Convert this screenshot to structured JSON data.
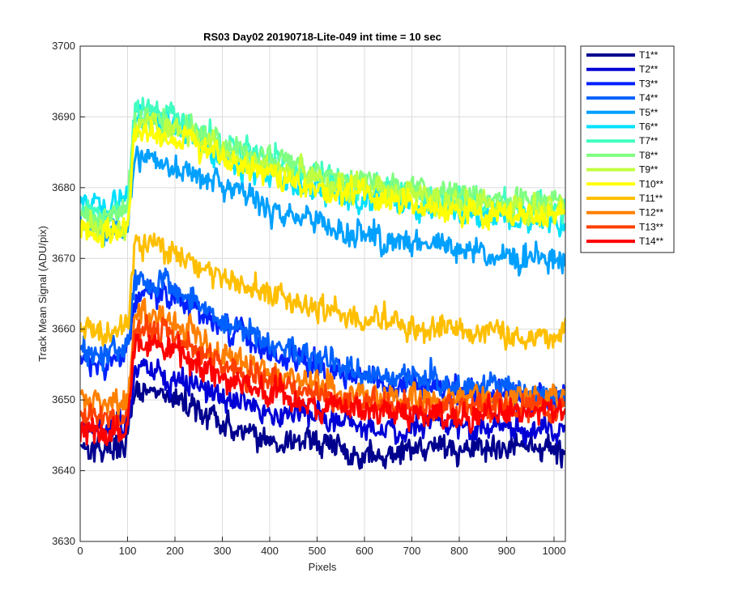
{
  "chart_data": {
    "type": "line",
    "title": "RS03 Day02 20190718-Lite-049 int time = 10 sec",
    "xlabel": "Pixels",
    "ylabel": "Track Mean Signal (ADU/pix)",
    "xlim": [
      0,
      1024
    ],
    "ylim": [
      3630,
      3700
    ],
    "xticks": [
      0,
      100,
      200,
      300,
      400,
      500,
      600,
      700,
      800,
      900,
      1000
    ],
    "yticks": [
      3630,
      3640,
      3650,
      3660,
      3670,
      3680,
      3690,
      3700
    ],
    "grid": true,
    "legend_position": "outside-top-right",
    "x_sample": [
      0,
      50,
      100,
      115,
      150,
      200,
      250,
      300,
      350,
      400,
      450,
      500,
      550,
      600,
      650,
      700,
      750,
      800,
      850,
      900,
      950,
      1000,
      1024
    ],
    "series": [
      {
        "name": "T1**",
        "color": "#00008f",
        "noise": 2.5,
        "values": [
          3644,
          3643,
          3644,
          3651,
          3651,
          3650,
          3649,
          3646,
          3646,
          3644,
          3644,
          3644,
          3643,
          3642,
          3642,
          3643,
          3644,
          3643,
          3643,
          3643,
          3643,
          3643,
          3643
        ]
      },
      {
        "name": "T2**",
        "color": "#0000d6",
        "noise": 2.5,
        "values": [
          3647,
          3646,
          3647,
          3654,
          3654,
          3653,
          3652,
          3650,
          3650,
          3648,
          3648,
          3648,
          3647,
          3646,
          3646,
          3646,
          3647,
          3646,
          3646,
          3646,
          3646,
          3646,
          3646
        ]
      },
      {
        "name": "T3**",
        "color": "#0020ff",
        "noise": 2.5,
        "values": [
          3656,
          3655,
          3656,
          3665,
          3665,
          3664,
          3663,
          3660,
          3659,
          3657,
          3656,
          3655,
          3654,
          3653,
          3652,
          3652,
          3652,
          3651,
          3651,
          3651,
          3650,
          3650,
          3650
        ]
      },
      {
        "name": "T4**",
        "color": "#0060ff",
        "noise": 2.5,
        "values": [
          3657,
          3656,
          3657,
          3667,
          3667,
          3666,
          3664,
          3661,
          3660,
          3658,
          3657,
          3656,
          3655,
          3654,
          3653,
          3653,
          3653,
          3652,
          3652,
          3652,
          3651,
          3651,
          3651
        ]
      },
      {
        "name": "T5**",
        "color": "#00a0ff",
        "noise": 2.5,
        "values": [
          3675,
          3674,
          3675,
          3685,
          3684,
          3683,
          3682,
          3680,
          3679,
          3677,
          3676,
          3675,
          3674,
          3673,
          3673,
          3672,
          3672,
          3671,
          3671,
          3670,
          3670,
          3670,
          3670
        ]
      },
      {
        "name": "T6**",
        "color": "#00e0ff",
        "noise": 2.5,
        "values": [
          3678,
          3677,
          3678,
          3690,
          3690,
          3689,
          3687,
          3684,
          3683,
          3682,
          3681,
          3680,
          3679,
          3678,
          3678,
          3677,
          3677,
          3676,
          3676,
          3676,
          3675,
          3675,
          3675
        ]
      },
      {
        "name": "T7**",
        "color": "#40ffc0",
        "noise": 2.5,
        "values": [
          3677,
          3676,
          3677,
          3691,
          3691,
          3690,
          3688,
          3686,
          3685,
          3684,
          3683,
          3682,
          3681,
          3680,
          3680,
          3679,
          3679,
          3678,
          3678,
          3678,
          3677,
          3677,
          3677
        ]
      },
      {
        "name": "T8**",
        "color": "#80ff80",
        "noise": 2.5,
        "values": [
          3676,
          3675,
          3676,
          3690,
          3690,
          3689,
          3688,
          3686,
          3685,
          3684,
          3683,
          3682,
          3681,
          3681,
          3680,
          3680,
          3679,
          3679,
          3679,
          3678,
          3678,
          3678,
          3678
        ]
      },
      {
        "name": "T9**",
        "color": "#c0ff40",
        "noise": 2.5,
        "values": [
          3675,
          3674,
          3675,
          3689,
          3689,
          3688,
          3687,
          3685,
          3684,
          3683,
          3682,
          3681,
          3680,
          3680,
          3679,
          3679,
          3678,
          3678,
          3678,
          3677,
          3677,
          3677,
          3677
        ]
      },
      {
        "name": "T10**",
        "color": "#ffff00",
        "noise": 2.5,
        "values": [
          3674,
          3673,
          3674,
          3688,
          3688,
          3687,
          3686,
          3684,
          3683,
          3682,
          3681,
          3680,
          3679,
          3679,
          3678,
          3678,
          3677,
          3677,
          3677,
          3676,
          3676,
          3676,
          3676
        ]
      },
      {
        "name": "T11**",
        "color": "#ffbf00",
        "noise": 2.5,
        "values": [
          3660,
          3659,
          3661,
          3672,
          3672,
          3671,
          3669,
          3667,
          3666,
          3665,
          3664,
          3663,
          3662,
          3661,
          3661,
          3660,
          3660,
          3660,
          3660,
          3659,
          3659,
          3659,
          3659
        ]
      },
      {
        "name": "T12**",
        "color": "#ff8000",
        "noise": 2.5,
        "values": [
          3650,
          3649,
          3650,
          3662,
          3662,
          3661,
          3659,
          3656,
          3655,
          3654,
          3653,
          3652,
          3651,
          3651,
          3650,
          3650,
          3650,
          3650,
          3650,
          3650,
          3650,
          3650,
          3650
        ]
      },
      {
        "name": "T13**",
        "color": "#ff4000",
        "noise": 2.5,
        "values": [
          3648,
          3647,
          3648,
          3660,
          3660,
          3659,
          3657,
          3655,
          3654,
          3653,
          3652,
          3651,
          3650,
          3650,
          3649,
          3649,
          3649,
          3649,
          3649,
          3649,
          3649,
          3649,
          3649
        ]
      },
      {
        "name": "T14**",
        "color": "#ff0000",
        "noise": 2.5,
        "values": [
          3646,
          3645,
          3646,
          3658,
          3658,
          3657,
          3655,
          3653,
          3652,
          3651,
          3650,
          3649,
          3649,
          3648,
          3648,
          3648,
          3648,
          3648,
          3648,
          3648,
          3648,
          3648,
          3648
        ]
      }
    ]
  }
}
